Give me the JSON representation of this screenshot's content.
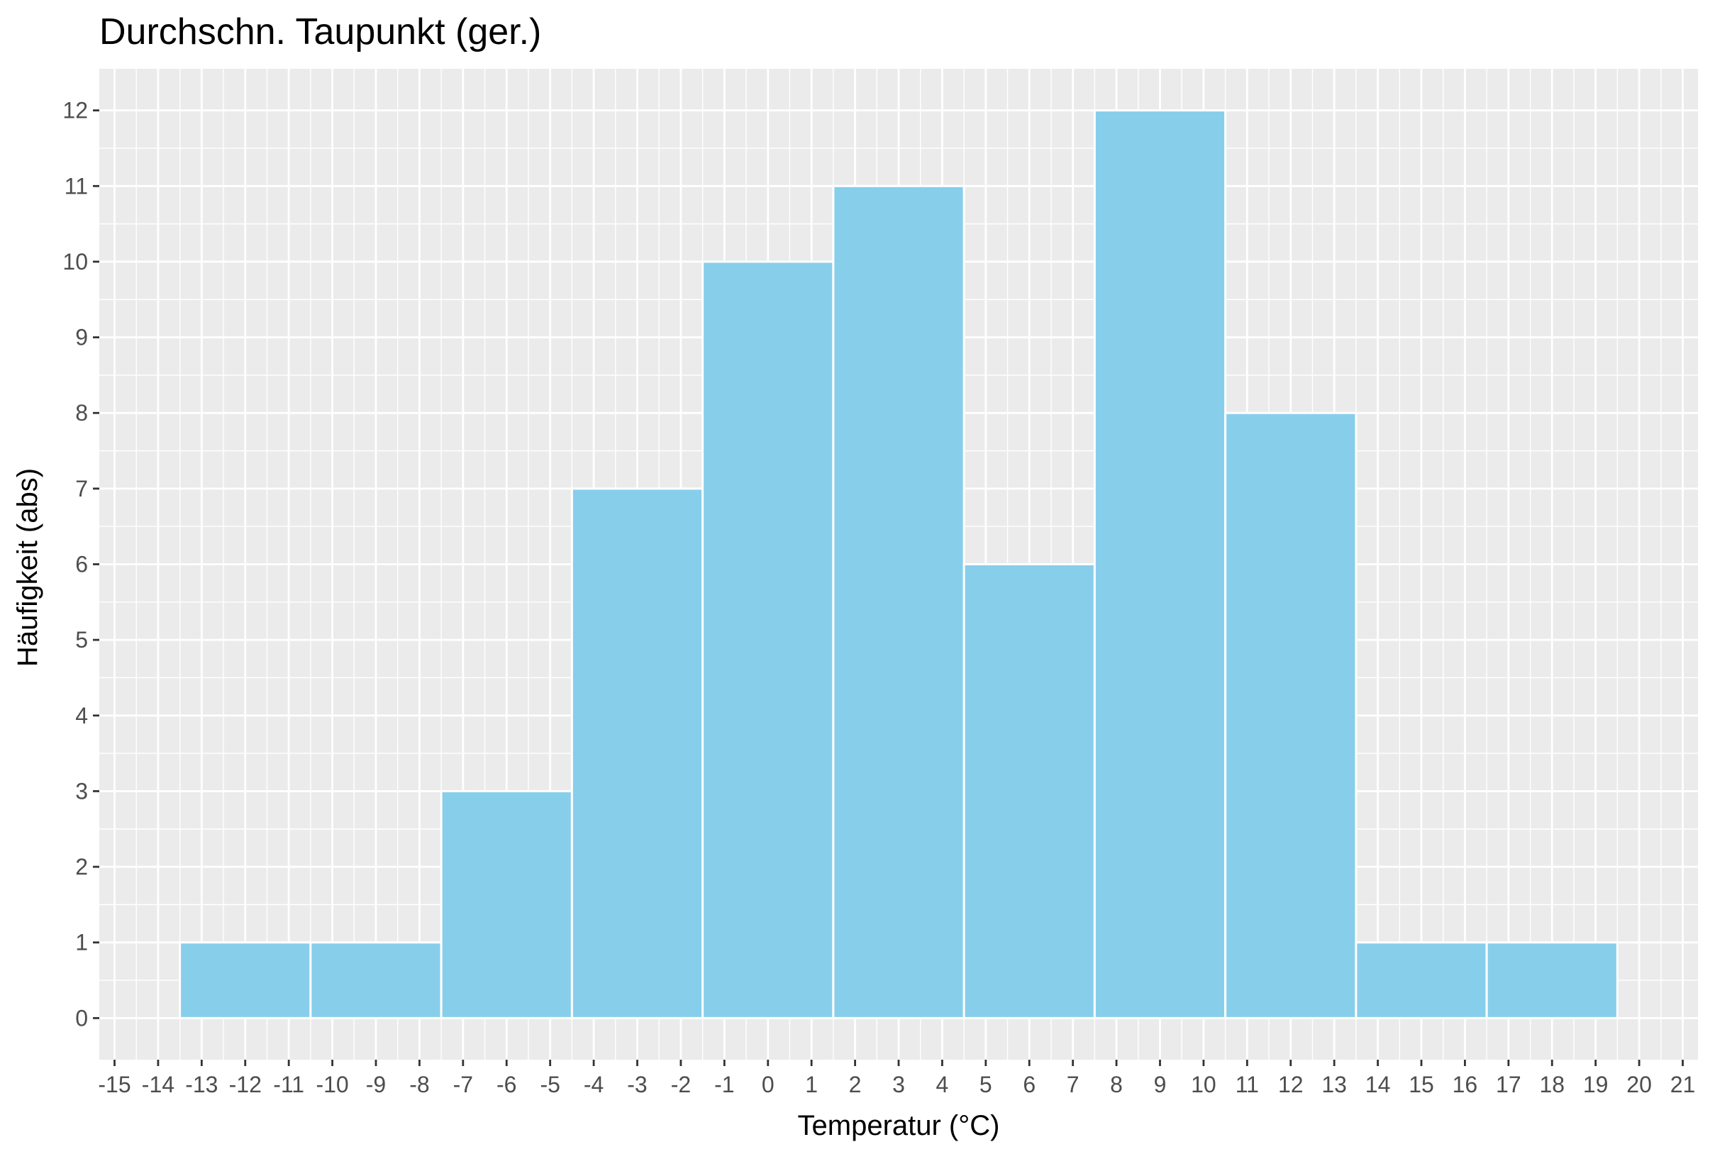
{
  "chart_data": {
    "type": "bar",
    "title": "Durchschn. Taupunkt (ger.)",
    "xlabel": "Temperatur (°C)",
    "ylabel": "Häufigkeit (abs)",
    "xlim": [
      -15.35,
      21.35
    ],
    "ylim": [
      -0.55,
      12.55
    ],
    "xticks": [
      -15,
      -14,
      -13,
      -12,
      -11,
      -10,
      -9,
      -8,
      -7,
      -6,
      -5,
      -4,
      -3,
      -2,
      -1,
      0,
      1,
      2,
      3,
      4,
      5,
      6,
      7,
      8,
      9,
      10,
      11,
      12,
      13,
      14,
      15,
      16,
      17,
      18,
      19,
      20,
      21
    ],
    "yticks": [
      0,
      1,
      2,
      3,
      4,
      5,
      6,
      7,
      8,
      9,
      10,
      11,
      12
    ],
    "grid": true,
    "bin_width": 3,
    "bins": [
      {
        "x0": -13.5,
        "x1": -10.5,
        "value": 1
      },
      {
        "x0": -10.5,
        "x1": -7.5,
        "value": 1
      },
      {
        "x0": -7.5,
        "x1": -4.5,
        "value": 3
      },
      {
        "x0": -4.5,
        "x1": -1.5,
        "value": 7
      },
      {
        "x0": -1.5,
        "x1": 1.5,
        "value": 10
      },
      {
        "x0": 1.5,
        "x1": 4.5,
        "value": 11
      },
      {
        "x0": 4.5,
        "x1": 7.5,
        "value": 6
      },
      {
        "x0": 7.5,
        "x1": 10.5,
        "value": 12
      },
      {
        "x0": 10.5,
        "x1": 13.5,
        "value": 8
      },
      {
        "x0": 13.5,
        "x1": 16.5,
        "value": 1
      },
      {
        "x0": 16.5,
        "x1": 19.5,
        "value": 1
      }
    ],
    "colors": {
      "bar_fill": "#87CEEB",
      "bar_stroke": "#ffffff",
      "panel": "#EBEBEB",
      "grid_major": "#ffffff",
      "grid_minor": "#ffffff"
    }
  }
}
